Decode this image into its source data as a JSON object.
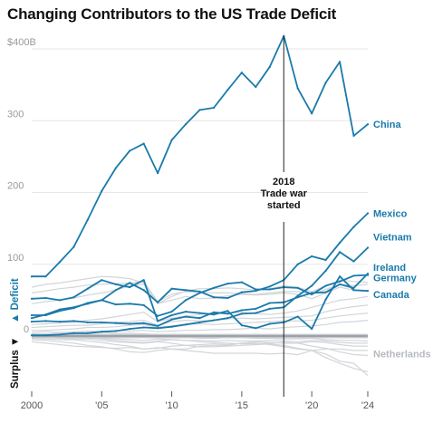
{
  "chart_data": {
    "type": "line",
    "title": "Changing Contributors to the US Trade Deficit",
    "ylabel_positive": "Deficit",
    "ylabel_negative": "Surplus",
    "y_ticks": [
      {
        "value": 400,
        "label": "$400B"
      },
      {
        "value": 300,
        "label": "300"
      },
      {
        "value": 200,
        "label": "200"
      },
      {
        "value": 100,
        "label": "100"
      },
      {
        "value": 0,
        "label": "0"
      }
    ],
    "x_ticks": [
      {
        "value": 2000,
        "label": "2000"
      },
      {
        "value": 2005,
        "label": "'05"
      },
      {
        "value": 2010,
        "label": "'10"
      },
      {
        "value": 2015,
        "label": "'15"
      },
      {
        "value": 2020,
        "label": "'20"
      },
      {
        "value": 2024,
        "label": "'24"
      }
    ],
    "xlim": [
      2000,
      2024
    ],
    "ylim": [
      -60,
      420
    ],
    "grid": true,
    "annotation": {
      "x": 2018,
      "lines": [
        "2018",
        "Trade war",
        "started"
      ]
    },
    "highlight_color": "#1a7aab",
    "background_color": "#d2d5d9",
    "x": [
      2000,
      2001,
      2002,
      2003,
      2004,
      2005,
      2006,
      2007,
      2008,
      2009,
      2010,
      2011,
      2012,
      2013,
      2014,
      2015,
      2016,
      2017,
      2018,
      2019,
      2020,
      2021,
      2022,
      2023,
      2024
    ],
    "series": [
      {
        "name": "China",
        "highlight": true,
        "values": [
          83,
          83,
          103,
          124,
          162,
          202,
          234,
          258,
          268,
          227,
          273,
          295,
          315,
          318,
          343,
          367,
          347,
          375,
          418,
          345,
          310,
          353,
          382,
          279,
          295
        ]
      },
      {
        "name": "Mexico",
        "highlight": true,
        "values": [
          25,
          30,
          37,
          40,
          45,
          50,
          64,
          74,
          64,
          47,
          66,
          64,
          62,
          54,
          53,
          61,
          63,
          69,
          78,
          100,
          111,
          106,
          130,
          152,
          171
        ]
      },
      {
        "name": "Vietnam",
        "highlight": true,
        "values": [
          1,
          1,
          2,
          4,
          4,
          6,
          7,
          10,
          12,
          11,
          13,
          16,
          19,
          22,
          25,
          31,
          32,
          38,
          40,
          56,
          70,
          91,
          117,
          104,
          123
        ]
      },
      {
        "name": "Ireland",
        "highlight": true,
        "values": [
          20,
          21,
          20,
          21,
          19,
          19,
          18,
          17,
          18,
          14,
          23,
          27,
          25,
          33,
          31,
          36,
          38,
          46,
          47,
          54,
          60,
          61,
          72,
          67,
          87
        ]
      },
      {
        "name": "Germany",
        "highlight": true,
        "values": [
          29,
          29,
          35,
          39,
          46,
          50,
          44,
          45,
          43,
          28,
          34,
          50,
          60,
          67,
          73,
          75,
          65,
          65,
          68,
          67,
          58,
          70,
          76,
          84,
          85
        ]
      },
      {
        "name": "Canada",
        "highlight": true,
        "values": [
          52,
          53,
          50,
          54,
          66,
          78,
          72,
          68,
          78,
          21,
          29,
          34,
          32,
          30,
          35,
          15,
          11,
          17,
          19,
          27,
          10,
          51,
          83,
          64,
          63
        ]
      },
      {
        "name": "Netherlands",
        "highlight": false,
        "values": [
          -8,
          -10,
          -12,
          -14,
          -15,
          -16,
          -17,
          -16,
          -18,
          -16,
          -18,
          -20,
          -22,
          -24,
          -24,
          -24,
          -24,
          -25,
          -24,
          -26,
          -20,
          -25,
          -35,
          -38,
          -55
        ]
      },
      {
        "name": "",
        "highlight": false,
        "values": [
          -5,
          -6,
          -8,
          -10,
          -13,
          -15,
          -18,
          -22,
          -23,
          -20,
          -18,
          -18,
          -14,
          -13,
          -13,
          -10,
          -10,
          -12,
          -15,
          -18,
          -20,
          -30,
          -38,
          -45,
          -50
        ]
      },
      {
        "name": "",
        "highlight": false,
        "values": [
          -3,
          -4,
          -5,
          -5,
          -7,
          -9,
          -12,
          -14,
          -18,
          -17,
          -14,
          -13,
          -12,
          -11,
          -12,
          -10,
          -8,
          -9,
          -10,
          -10,
          -14,
          -17,
          -22,
          -26,
          -27
        ]
      },
      {
        "name": "",
        "highlight": false,
        "values": [
          -2,
          -2,
          -3,
          -4,
          -4,
          -6,
          -8,
          -9,
          -10,
          -8,
          -10,
          -13,
          -15,
          -15,
          -14,
          -13,
          -12,
          -11,
          -13,
          -17,
          -20,
          -18,
          -18,
          -20,
          -20
        ]
      },
      {
        "name": "",
        "highlight": false,
        "values": [
          2,
          1,
          0,
          -1,
          -2,
          -4,
          -6,
          -8,
          -9,
          -7,
          -5,
          -6,
          -8,
          -9,
          -10,
          -11,
          -11,
          -10,
          -9,
          -10,
          -8,
          -9,
          -12,
          -14,
          -14
        ]
      },
      {
        "name": "",
        "highlight": false,
        "values": [
          0,
          0,
          -1,
          -2,
          -3,
          -3,
          -4,
          -5,
          -6,
          -4,
          -5,
          -6,
          -6,
          -7,
          -6,
          -7,
          -7,
          -6,
          -7,
          -8,
          -6,
          -7,
          -9,
          -10,
          -10
        ]
      },
      {
        "name": "",
        "highlight": false,
        "values": [
          1,
          1,
          2,
          2,
          3,
          2,
          1,
          0,
          -1,
          -1,
          -2,
          -2,
          -3,
          -3,
          -2,
          -2,
          -3,
          -3,
          -4,
          -4,
          -3,
          -5,
          -6,
          -6,
          -7
        ]
      },
      {
        "name": "",
        "highlight": false,
        "values": [
          3,
          3,
          4,
          3,
          4,
          5,
          4,
          4,
          3,
          2,
          2,
          2,
          1,
          1,
          1,
          0,
          0,
          -1,
          -1,
          -1,
          0,
          -1,
          -2,
          -2,
          -2
        ]
      },
      {
        "name": "",
        "highlight": false,
        "values": [
          5,
          6,
          5,
          6,
          7,
          6,
          8,
          7,
          8,
          6,
          7,
          8,
          8,
          9,
          9,
          10,
          11,
          10,
          12,
          13,
          14,
          16,
          19,
          20,
          22
        ]
      },
      {
        "name": "",
        "highlight": false,
        "values": [
          8,
          8,
          9,
          10,
          12,
          12,
          13,
          15,
          16,
          12,
          14,
          16,
          17,
          16,
          17,
          18,
          19,
          20,
          21,
          21,
          22,
          25,
          28,
          30,
          32
        ]
      },
      {
        "name": "",
        "highlight": false,
        "values": [
          12,
          13,
          14,
          15,
          15,
          17,
          19,
          20,
          22,
          15,
          20,
          22,
          21,
          22,
          24,
          25,
          24,
          25,
          26,
          27,
          28,
          34,
          38,
          41,
          43
        ]
      },
      {
        "name": "",
        "highlight": false,
        "values": [
          16,
          17,
          18,
          19,
          22,
          24,
          27,
          30,
          33,
          20,
          25,
          28,
          30,
          32,
          32,
          33,
          31,
          30,
          32,
          35,
          40,
          45,
          50,
          52,
          55
        ]
      },
      {
        "name": "",
        "highlight": false,
        "values": [
          45,
          48,
          50,
          53,
          57,
          60,
          64,
          70,
          72,
          45,
          55,
          63,
          66,
          66,
          67,
          66,
          64,
          66,
          70,
          68,
          62,
          70,
          78,
          76,
          75
        ]
      },
      {
        "name": "",
        "highlight": false,
        "values": [
          60,
          63,
          66,
          68,
          71,
          72,
          73,
          74,
          76,
          48,
          58,
          62,
          61,
          60,
          60,
          59,
          58,
          60,
          62,
          62,
          58,
          65,
          72,
          70,
          72
        ]
      },
      {
        "name": "",
        "highlight": false,
        "values": [
          68,
          72,
          74,
          77,
          80,
          83,
          82,
          80,
          74,
          45,
          50,
          55,
          52,
          53,
          56,
          58,
          57,
          58,
          60,
          58,
          52,
          60,
          68,
          64,
          62
        ]
      }
    ]
  }
}
